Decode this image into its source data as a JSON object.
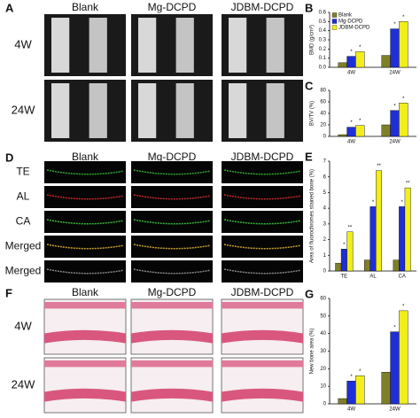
{
  "panel_a": {
    "label": "A",
    "columns": [
      "Blank",
      "Mg-DCPD",
      "JDBM-DCPD"
    ],
    "rows": [
      "4W",
      "24W"
    ]
  },
  "panel_d": {
    "label": "D",
    "columns": [
      "Blank",
      "Mg-DCPD",
      "JDBM-DCPD"
    ],
    "rows": [
      "TE",
      "AL",
      "CA",
      "Merged",
      "Merged"
    ]
  },
  "panel_f": {
    "label": "F",
    "columns": [
      "Blank",
      "Mg-DCPD",
      "JDBM-DCPD"
    ],
    "rows": [
      "4W",
      "24W"
    ]
  },
  "chart_data": [
    {
      "type": "bar",
      "label": "B",
      "y_label": "BMD (g/cm³)",
      "categories": [
        "4W",
        "24W"
      ],
      "legend": "upper left",
      "ylim": [
        0,
        0.6
      ],
      "yticks": [
        {
          "value": 0,
          "label": "0.0"
        },
        0.1,
        0.2,
        0.3,
        0.4,
        0.5,
        0.6
      ],
      "series": [
        {
          "name": "Blank",
          "color": "#7f7f2a",
          "values": [
            0.05,
            0.13
          ],
          "sig": [
            null,
            null
          ]
        },
        {
          "name": "Mg-DCPD",
          "color": "#1e2ed8",
          "values": [
            0.12,
            0.42
          ],
          "sig": [
            "*",
            "*"
          ]
        },
        {
          "name": "JDBM-DCPD",
          "color": "#f2ee1c",
          "values": [
            0.17,
            0.5
          ],
          "sig": [
            "*",
            "*"
          ]
        }
      ]
    },
    {
      "type": "bar",
      "label": "C",
      "y_label": "BV/TV (%)",
      "categories": [
        "4W",
        "24W"
      ],
      "ylim": [
        0,
        80
      ],
      "yticks": [
        0,
        20,
        40,
        60,
        80
      ],
      "series": [
        {
          "color": "#7f7f2a",
          "values": [
            3,
            20
          ],
          "sig": [
            null,
            null
          ]
        },
        {
          "color": "#1e2ed8",
          "values": [
            16,
            45
          ],
          "sig": [
            "*",
            "*"
          ]
        },
        {
          "color": "#f2ee1c",
          "values": [
            19,
            58
          ],
          "sig": [
            "*",
            "*"
          ]
        }
      ]
    },
    {
      "type": "bar",
      "label": "E",
      "y_label": "Area of fluorochromes stained bone (%)",
      "categories": [
        "TE",
        "AL",
        "CA"
      ],
      "ylim": [
        0,
        7
      ],
      "yticks": [
        0,
        1,
        2,
        3,
        4,
        5,
        6,
        7
      ],
      "series": [
        {
          "color": "#7f7f2a",
          "values": [
            0.5,
            0.7,
            0.7
          ],
          "sig": [
            null,
            null,
            null
          ]
        },
        {
          "color": "#1e2ed8",
          "values": [
            1.4,
            4.1,
            4.1
          ],
          "sig": [
            "*",
            "*",
            "*"
          ]
        },
        {
          "color": "#f2ee1c",
          "values": [
            2.5,
            6.4,
            5.3
          ],
          "sig": [
            "**",
            "**",
            "**"
          ]
        }
      ]
    },
    {
      "type": "bar",
      "label": "G",
      "y_label": "New bone area (%)",
      "categories": [
        "4W",
        "24W"
      ],
      "ylim": [
        0,
        60
      ],
      "yticks": [
        0,
        10,
        20,
        30,
        40,
        50,
        60
      ],
      "series": [
        {
          "color": "#7f7f2a",
          "values": [
            3,
            18
          ],
          "sig": [
            null,
            null
          ]
        },
        {
          "color": "#1e2ed8",
          "values": [
            13,
            41
          ],
          "sig": [
            "*",
            "*"
          ]
        },
        {
          "color": "#f2ee1c",
          "values": [
            16,
            53
          ],
          "sig": [
            "*",
            "*"
          ]
        }
      ]
    }
  ]
}
